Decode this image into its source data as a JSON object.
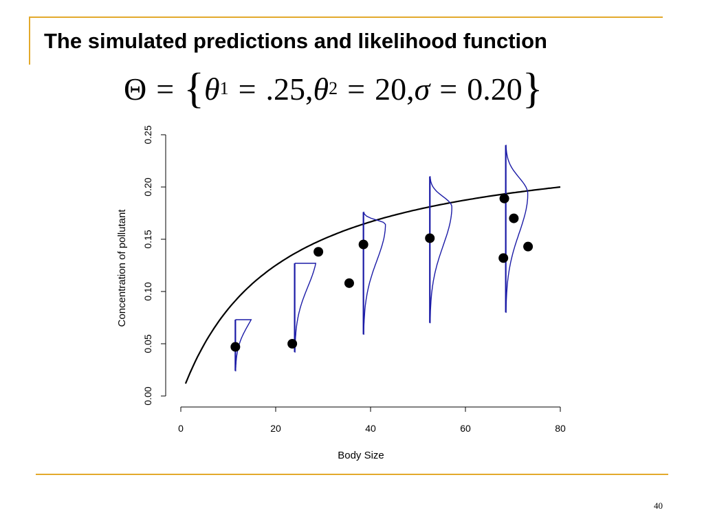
{
  "slide": {
    "title": "The simulated predictions and likelihood function",
    "formula": {
      "lhs": "Θ",
      "eq": "=",
      "open": "{",
      "theta": "θ",
      "sub1": "1",
      "val1": ".25,",
      "sub2": "2",
      "val2": "20,",
      "sigma": "σ",
      "val3": "0.20",
      "close": "}"
    },
    "page_number": "40"
  },
  "colors": {
    "accent": "#e3a92b",
    "curve": "#000000",
    "density": "#1a1aa6",
    "points": "#000000"
  },
  "chart_data": {
    "type": "scatter",
    "xlabel": "Body Size",
    "ylabel": "Concentration of pollutant",
    "xlim": [
      0,
      80
    ],
    "ylim": [
      0,
      0.25
    ],
    "xticks": [
      0,
      20,
      40,
      60,
      80
    ],
    "yticks": [
      0.0,
      0.05,
      0.1,
      0.15,
      0.2,
      0.25
    ],
    "ytick_labels": [
      "0.00",
      "0.05",
      "0.10",
      "0.15",
      "0.20",
      "0.25"
    ],
    "grid": false,
    "observed_points": [
      {
        "x": 11.5,
        "y": 0.047
      },
      {
        "x": 23.5,
        "y": 0.05
      },
      {
        "x": 29.0,
        "y": 0.138
      },
      {
        "x": 35.5,
        "y": 0.108
      },
      {
        "x": 38.5,
        "y": 0.145
      },
      {
        "x": 52.5,
        "y": 0.151
      },
      {
        "x": 68.2,
        "y": 0.189
      },
      {
        "x": 70.2,
        "y": 0.17
      },
      {
        "x": 68.0,
        "y": 0.132
      },
      {
        "x": 73.2,
        "y": 0.143
      }
    ],
    "prediction_curve": {
      "theta1": 0.25,
      "theta2": 20,
      "x_range": [
        1,
        80
      ]
    },
    "predictive_densities": [
      {
        "x": 11.5,
        "y_min": 0.024,
        "y_max": 0.073
      },
      {
        "x": 24.0,
        "y_min": 0.042,
        "y_max": 0.127
      },
      {
        "x": 38.5,
        "y_min": 0.059,
        "y_max": 0.176
      },
      {
        "x": 52.5,
        "y_min": 0.07,
        "y_max": 0.21
      },
      {
        "x": 68.5,
        "y_min": 0.08,
        "y_max": 0.24
      }
    ]
  }
}
